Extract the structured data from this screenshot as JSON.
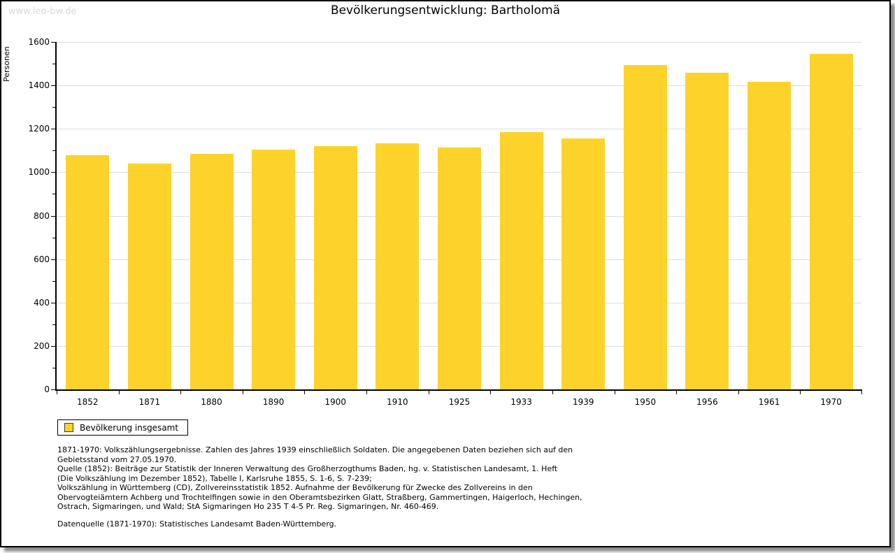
{
  "watermark": "www.leo-bw.de",
  "chart_data": {
    "type": "bar",
    "title": "Bevölkerungsentwicklung: Bartholomä",
    "ylabel": "Personen",
    "xlabel": "",
    "categories": [
      "1852",
      "1871",
      "1880",
      "1890",
      "1900",
      "1910",
      "1925",
      "1933",
      "1939",
      "1950",
      "1956",
      "1961",
      "1970"
    ],
    "values": [
      1080,
      1041,
      1086,
      1105,
      1121,
      1134,
      1114,
      1184,
      1157,
      1494,
      1457,
      1417,
      1544
    ],
    "series_name": "Bevölkerung insgesamt",
    "ylim": [
      0,
      1600
    ],
    "ytick_step": 200,
    "ytick_minor_step": 100,
    "grid": "horizontal",
    "legend_position": "bottom-left",
    "bar_color": "#FDD32B",
    "grid_color": "#dddddd",
    "axis_color": "#000000"
  },
  "legend": {
    "label": "Bevölkerung insgesamt",
    "swatch_color": "#FDD32B"
  },
  "footnotes": {
    "note_lines": [
      "1871-1970: Volkszählungsergebnisse. Zahlen des Jahres 1939 einschließlich Soldaten. Die angegebenen Daten beziehen sich auf den",
      "Gebietsstand vom 27.05.1970.",
      "Quelle (1852): Beiträge zur Statistik der Inneren Verwaltung des Großherzogthums Baden, hg. v. Statistischen Landesamt, 1. Heft",
      "(Die Volkszählung im Dezember 1852), Tabelle I, Karlsruhe 1855, S. 1-6, S. 7-239;",
      "Volkszählung in Württemberg (CD), Zollvereinsstatistik 1852. Aufnahme der Bevölkerung für Zwecke des Zollvereins in den",
      "Obervogteiämtern Achberg und Trochtelfingen sowie in den Oberamtsbezirken Glatt, Straßberg, Gammertingen, Haigerloch, Hechingen,",
      "Ostrach, Sigmaringen, und Wald; StA Sigmaringen Ho 235 T 4-5 Pr. Reg. Sigmaringen, Nr. 460-469."
    ],
    "datasource": "Datenquelle (1871-1970): Statistisches Landesamt Baden-Württemberg."
  }
}
